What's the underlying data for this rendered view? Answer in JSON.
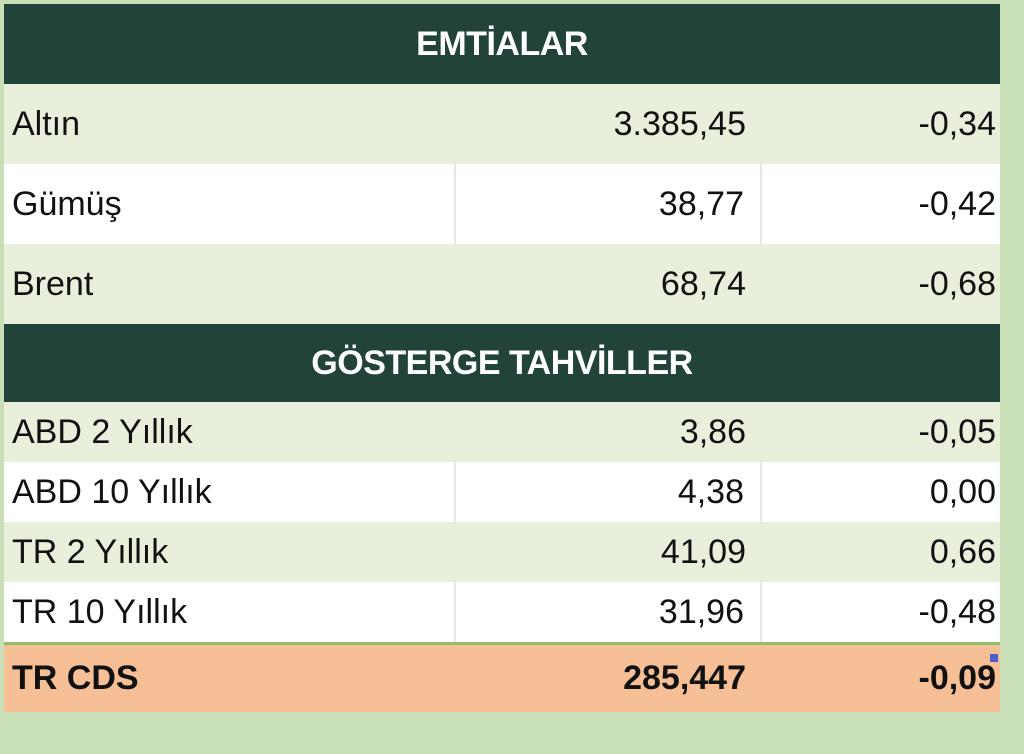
{
  "colors": {
    "background": "#c9dfb8",
    "header": "#21433a",
    "row_alt": "#e8efdb",
    "row_plain": "#ffffff",
    "cds_row": "#f6bf95",
    "text": "#111111"
  },
  "emtialar": {
    "title": "EMTİALAR",
    "rows": [
      {
        "name": "Altın",
        "value": "3.385,45",
        "change": "-0,34"
      },
      {
        "name": "Gümüş",
        "value": "38,77",
        "change": "-0,42"
      },
      {
        "name": "Brent",
        "value": "68,74",
        "change": "-0,68"
      }
    ]
  },
  "tahviller": {
    "title": "GÖSTERGE TAHVİLLER",
    "rows": [
      {
        "name": "ABD 2 Yıllık",
        "value": "3,86",
        "change": "-0,05"
      },
      {
        "name": "ABD 10 Yıllık",
        "value": "4,38",
        "change": "0,00"
      },
      {
        "name": "TR 2 Yıllık",
        "value": "41,09",
        "change": "0,66"
      },
      {
        "name": "TR 10 Yıllık",
        "value": "31,96",
        "change": "-0,48"
      }
    ]
  },
  "cds": {
    "name": "TR CDS",
    "value": "285,447",
    "change": "-0,09"
  }
}
